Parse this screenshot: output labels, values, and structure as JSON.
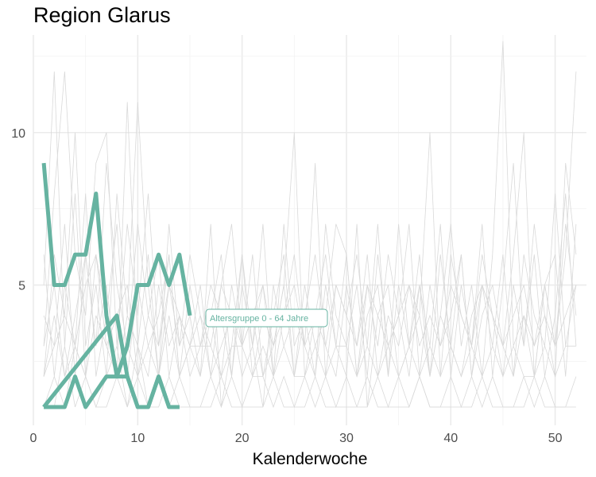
{
  "chart_data": {
    "type": "line",
    "title": "Region Glarus",
    "xlabel": "Kalenderwoche",
    "ylabel": "",
    "xlim": [
      0,
      53
    ],
    "ylim": [
      0.4,
      13.2
    ],
    "x_ticks": [
      0,
      10,
      20,
      30,
      40,
      50
    ],
    "y_ticks": [
      5,
      10
    ],
    "grid": true,
    "colors": {
      "highlight": "#66b3a1",
      "background": "#d9d9d9",
      "grid": "#ebebeb"
    },
    "highlight_series": [
      {
        "name": "Altersgruppe 0 - 64 Jahre",
        "x": [
          1,
          2,
          3,
          4,
          5,
          6,
          7,
          8,
          9,
          10,
          11,
          12,
          13,
          14,
          15
        ],
        "y": [
          9,
          5,
          5,
          6,
          6,
          8,
          4,
          2,
          3,
          5,
          5,
          6,
          5,
          6,
          4
        ]
      },
      {
        "x": [
          1,
          8,
          9,
          10,
          11,
          12,
          13,
          14
        ],
        "y": [
          1,
          4,
          2,
          1,
          1,
          2,
          1,
          1
        ]
      },
      {
        "x": [
          1,
          2,
          3,
          4,
          5,
          6,
          7,
          8,
          9,
          10,
          11,
          12,
          13,
          14
        ],
        "y": [
          1,
          1,
          1,
          2,
          1,
          1.5,
          2,
          2,
          2,
          1,
          1,
          2,
          1,
          1
        ]
      }
    ],
    "background_series": [
      {
        "x": [
          1,
          2,
          3,
          4,
          5,
          6,
          7,
          8,
          9,
          10,
          11,
          12,
          13,
          14,
          15,
          16,
          17,
          18,
          19,
          20,
          21,
          22,
          23,
          24,
          25,
          26,
          27,
          28,
          29,
          30,
          31,
          32,
          33,
          34,
          35,
          36,
          37,
          38,
          39,
          40,
          41,
          42,
          43,
          44,
          45,
          46,
          47,
          48,
          49,
          50,
          51,
          52
        ],
        "y": [
          5,
          12,
          3,
          8,
          2,
          6,
          4,
          2,
          11,
          3,
          6,
          2,
          5,
          3,
          4,
          2,
          7,
          1,
          3,
          6,
          2,
          4,
          3,
          5,
          10,
          2,
          4,
          6,
          3,
          2,
          7,
          1,
          4,
          5,
          2,
          3,
          6,
          2,
          4,
          7,
          3,
          5,
          2,
          6,
          13,
          3,
          4,
          2,
          5,
          3,
          6,
          12
        ]
      },
      {
        "x": [
          1,
          2,
          3,
          4,
          5,
          6,
          7,
          8,
          9,
          10,
          11,
          12,
          13,
          14,
          15,
          16,
          17,
          18,
          19,
          20,
          21,
          22,
          23,
          24,
          25,
          26,
          27,
          28,
          29,
          30,
          31,
          32,
          33,
          34,
          35,
          36,
          37,
          38,
          39,
          40,
          41,
          42,
          43,
          44,
          45,
          46,
          47,
          48,
          49,
          50,
          51,
          52
        ],
        "y": [
          3,
          8,
          12,
          6,
          4,
          9,
          10,
          3,
          7,
          4,
          8,
          3,
          6,
          2,
          5,
          3,
          4,
          6,
          2,
          5,
          3,
          7,
          2,
          4,
          6,
          3,
          9,
          2,
          5,
          4,
          6,
          3,
          7,
          2,
          5,
          3,
          4,
          10,
          2,
          6,
          4,
          3,
          7,
          2,
          5,
          9,
          3,
          6,
          2,
          4,
          8,
          3
        ]
      },
      {
        "x": [
          1,
          2,
          3,
          4,
          5,
          6,
          7,
          8,
          9,
          10,
          11,
          12,
          13,
          14,
          15,
          16,
          17,
          18,
          19,
          20,
          21,
          22,
          23,
          24,
          25,
          26,
          27,
          28,
          29,
          30,
          31,
          32,
          33,
          34,
          35,
          36,
          37,
          38,
          39,
          40,
          41,
          42,
          43,
          44,
          45,
          46,
          47,
          48,
          49,
          50,
          51,
          52
        ],
        "y": [
          2,
          6,
          4,
          10,
          3,
          5,
          2,
          8,
          4,
          11,
          5,
          2,
          7,
          3,
          6,
          4,
          2,
          5,
          7,
          3,
          6,
          2,
          4,
          6,
          2,
          5,
          3,
          4,
          7,
          6,
          2,
          5,
          3,
          6,
          4,
          7,
          2,
          5,
          3,
          4,
          6,
          2,
          5,
          4,
          3,
          6,
          10,
          2,
          5,
          3,
          7,
          4
        ]
      },
      {
        "x": [
          1,
          2,
          3,
          4,
          5,
          6,
          7,
          8,
          9,
          10,
          11,
          12,
          13,
          14,
          15,
          16,
          17,
          18,
          19,
          20,
          21,
          22,
          23,
          24,
          25,
          26,
          27,
          28,
          29,
          30,
          31,
          32,
          33,
          34,
          35,
          36,
          37,
          38,
          39,
          40,
          41,
          42,
          43,
          44,
          45,
          46,
          47,
          48,
          49,
          50,
          51,
          52
        ],
        "y": [
          4,
          3,
          7,
          2,
          6,
          3,
          9,
          5,
          3,
          7,
          4,
          6,
          2,
          4,
          3,
          5,
          2,
          3,
          4,
          2,
          3,
          1,
          5,
          3,
          4,
          3,
          2,
          7,
          4,
          3,
          5,
          2,
          6,
          3,
          4,
          2,
          5,
          3,
          7,
          2,
          5,
          3,
          6,
          4,
          2,
          5,
          3,
          7,
          4,
          2,
          9,
          6
        ]
      },
      {
        "x": [
          1,
          2,
          3,
          4,
          5,
          6,
          7,
          8,
          9,
          10,
          11,
          12,
          13,
          14,
          15,
          16,
          17,
          18,
          19,
          20,
          21,
          22,
          23,
          24,
          25,
          26,
          27,
          28,
          29,
          30,
          31,
          32,
          33,
          34,
          35,
          36,
          37,
          38,
          39,
          40,
          41,
          42,
          43,
          44,
          45,
          46,
          47,
          48,
          49,
          50,
          51,
          52
        ],
        "y": [
          6,
          2,
          5,
          3,
          8,
          2,
          4,
          7,
          2,
          5,
          3,
          4,
          6,
          2,
          3,
          2,
          4,
          2,
          5,
          3,
          4,
          2,
          3,
          5,
          2,
          4,
          6,
          3,
          2,
          5,
          3,
          6,
          2,
          4,
          3,
          5,
          4,
          2,
          6,
          3,
          2,
          4,
          5,
          3,
          6,
          2,
          4,
          3,
          5,
          6,
          2,
          7
        ]
      },
      {
        "x": [
          1,
          2,
          3,
          4,
          5,
          6,
          7,
          8,
          9,
          10,
          11,
          12,
          13,
          14,
          15,
          16,
          17,
          18,
          19,
          20,
          21,
          22,
          23,
          24,
          25,
          26,
          27,
          28,
          29,
          30,
          31,
          32,
          33,
          34,
          35,
          36,
          37,
          38,
          39,
          40,
          41,
          42,
          43,
          44,
          45,
          46,
          47,
          48,
          49,
          50,
          51,
          52
        ],
        "y": [
          2,
          4,
          2,
          3,
          2,
          4,
          3,
          2,
          3,
          2,
          3,
          2,
          4,
          2,
          3,
          3,
          3,
          2,
          3,
          3,
          2,
          3,
          2,
          3,
          2,
          2,
          3,
          2,
          3,
          3,
          2,
          3,
          2,
          3,
          2,
          3,
          2,
          3,
          2,
          3,
          2,
          3,
          2,
          3,
          2,
          3,
          2,
          2,
          3,
          2,
          3,
          3
        ]
      },
      {
        "x": [
          1,
          2,
          3,
          4,
          5,
          6,
          7,
          8,
          9,
          10,
          11,
          12,
          13,
          14,
          15,
          16,
          17,
          18,
          19,
          20,
          21,
          22,
          23,
          24,
          25,
          26,
          27,
          28,
          29,
          30,
          31,
          32,
          33,
          34,
          35,
          36,
          37,
          38,
          39,
          40,
          41,
          42,
          43,
          44,
          45,
          46,
          47,
          48,
          49,
          50,
          51,
          52
        ],
        "y": [
          1,
          2,
          1,
          3,
          2,
          1,
          2,
          3,
          1,
          2,
          1,
          2,
          1,
          2,
          1,
          1,
          2,
          1,
          2,
          1,
          2,
          2,
          1,
          2,
          1,
          2,
          1,
          2,
          1,
          2,
          1,
          1,
          2,
          1,
          2,
          1,
          2,
          1,
          1,
          2,
          1,
          2,
          1,
          2,
          1,
          1,
          2,
          1,
          2,
          1,
          1,
          2
        ]
      },
      {
        "x": [
          1,
          2,
          3,
          4,
          5,
          6,
          7,
          8,
          9,
          10,
          11,
          12,
          13,
          14,
          15,
          16,
          17,
          18,
          19,
          20,
          21,
          22,
          23,
          24,
          25,
          26,
          27,
          28,
          29,
          30,
          31,
          32,
          33,
          34,
          35,
          36,
          37,
          38,
          39,
          40,
          41,
          42,
          43,
          44,
          45,
          46,
          47,
          48,
          49,
          50,
          51,
          52
        ],
        "y": [
          3,
          5,
          2,
          4,
          6,
          3,
          5,
          2,
          4,
          3,
          2,
          5,
          3,
          4,
          2,
          3,
          5,
          4,
          2,
          6,
          3,
          5,
          2,
          7,
          3,
          4,
          2,
          5,
          3,
          6,
          2,
          4,
          5,
          2,
          7,
          3,
          5,
          2,
          4,
          3,
          6,
          2,
          4,
          5,
          3,
          2,
          6,
          4,
          3,
          8,
          3,
          5
        ]
      },
      {
        "x": [
          1,
          2,
          3,
          4,
          5,
          6,
          7,
          8,
          9,
          10,
          11,
          12,
          13,
          14,
          15,
          16,
          17,
          18,
          19,
          20,
          21,
          22,
          23,
          24,
          25,
          26,
          27,
          28,
          29,
          30,
          31,
          32,
          33,
          34,
          35,
          36,
          37,
          38,
          39,
          40,
          41,
          42,
          43,
          44,
          45,
          46,
          47,
          48,
          49,
          50,
          51,
          52
        ],
        "y": [
          1,
          1,
          3,
          1,
          2,
          1,
          1,
          2,
          1,
          3,
          1,
          1,
          2,
          1,
          1,
          1,
          1,
          2,
          1,
          1,
          1,
          1,
          2,
          1,
          1,
          1,
          2,
          1,
          1,
          1,
          1,
          2,
          1,
          1,
          1,
          1,
          2,
          1,
          1,
          1,
          1,
          1,
          2,
          1,
          1,
          1,
          1,
          2,
          1,
          1,
          1,
          1
        ]
      },
      {
        "x": [
          1,
          2,
          3,
          4,
          5,
          6,
          7,
          8,
          9,
          10,
          11,
          12,
          13,
          14,
          15,
          16,
          17,
          18,
          19,
          20,
          21,
          22,
          23,
          24,
          25,
          26,
          27,
          28,
          29,
          30,
          31,
          32,
          33,
          34,
          35,
          36,
          37,
          38,
          39,
          40,
          41,
          42,
          43,
          44,
          45,
          46,
          47,
          48,
          49,
          50,
          51,
          52
        ],
        "y": [
          2,
          3,
          4,
          3,
          5,
          6,
          3,
          4,
          5,
          2,
          4,
          3,
          5,
          4,
          3,
          4,
          3,
          5,
          4,
          3,
          4,
          5,
          3,
          4,
          5,
          3,
          4,
          3,
          5,
          4,
          3,
          5,
          4,
          3,
          4,
          5,
          3,
          4,
          3,
          5,
          4,
          3,
          5,
          4,
          3,
          4,
          5,
          3,
          4,
          3,
          4,
          5
        ]
      }
    ],
    "annotation": "Altersgruppe 0 - 64 Jahre"
  }
}
